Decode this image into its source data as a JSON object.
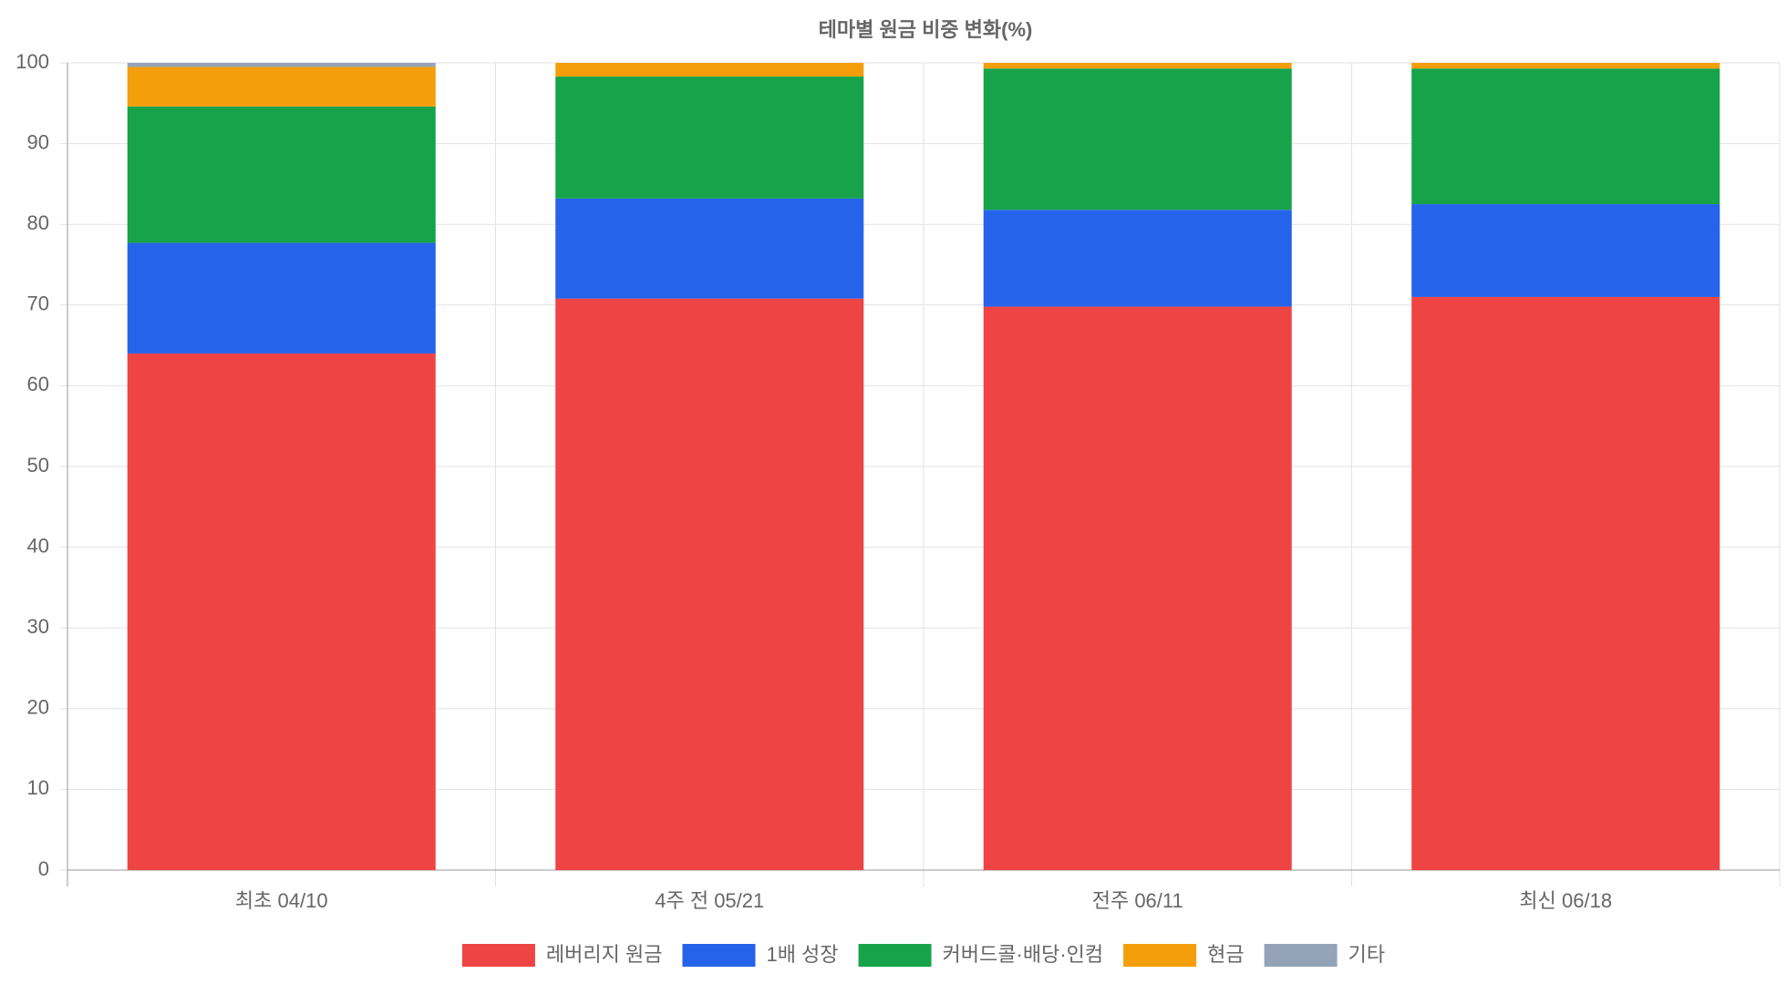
{
  "chart_data": {
    "type": "stacked-bar",
    "title": "테마별 원금 비중 변화(%)",
    "categories": [
      "최초 04/10",
      "4주 전 05/21",
      "전주 06/11",
      "최신 06/18"
    ],
    "series": [
      {
        "name": "레버리지 원금",
        "color": "#ef4444",
        "values": [
          64.0,
          70.8,
          69.8,
          71.0
        ]
      },
      {
        "name": "1배 성장",
        "color": "#2563eb",
        "values": [
          13.7,
          12.4,
          12.0,
          11.5
        ]
      },
      {
        "name": "커버드콜·배당·인컴",
        "color": "#16a34a",
        "values": [
          16.9,
          15.1,
          17.5,
          16.8
        ]
      },
      {
        "name": "현금",
        "color": "#f59e0b",
        "values": [
          4.9,
          1.7,
          0.7,
          0.7
        ]
      },
      {
        "name": "기타",
        "color": "#94a3b8",
        "values": [
          0.5,
          0,
          0,
          0
        ]
      }
    ],
    "ylim": [
      0,
      100
    ],
    "yticks": [
      0,
      10,
      20,
      30,
      40,
      50,
      60,
      70,
      80,
      90,
      100
    ],
    "grid": true,
    "legend": "bottom"
  }
}
